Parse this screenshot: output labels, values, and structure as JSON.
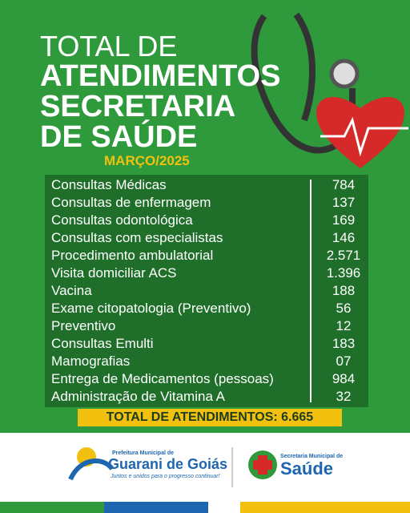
{
  "header": {
    "line1": "TOTAL DE",
    "line2": "ATENDIMENTOS",
    "line3": "SECRETARIA",
    "line4": "DE SAÚDE",
    "period": "MARÇO/2025"
  },
  "table": {
    "rows": [
      [
        "Consultas Médicas",
        "784"
      ],
      [
        "Consultas de enfermagem",
        "137"
      ],
      [
        "Consultas odontológica",
        "169"
      ],
      [
        "Consultas com especialistas",
        "146"
      ],
      [
        "Procedimento ambulatorial",
        "2.571"
      ],
      [
        "Visita domiciliar ACS",
        "1.396"
      ],
      [
        "Vacina",
        "188"
      ],
      [
        "Exame citopatologia (Preventivo)",
        "56"
      ],
      [
        "Preventivo",
        "12"
      ],
      [
        "Consultas Emulti",
        "183"
      ],
      [
        "Mamografias",
        "07"
      ],
      [
        "Entrega de Medicamentos (pessoas)",
        "984"
      ],
      [
        "Administração de Vitamina A",
        "32"
      ]
    ]
  },
  "total": "TOTAL DE ATENDIMENTOS: 6.665",
  "footer": {
    "left_top": "Prefeitura Municipal de",
    "left_name": "Guarani de Goiás",
    "left_slogan": "Juntos e unidos para o progresso continuar!",
    "right_top": "Secretaria Municipal de",
    "right_name": "Saúde"
  }
}
